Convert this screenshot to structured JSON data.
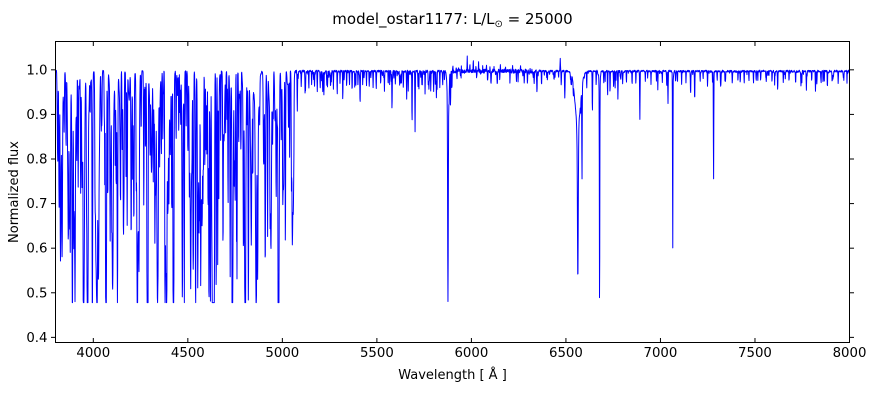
{
  "figure": {
    "background": "#ffffff",
    "title_parts": {
      "main": "model_ostar1177: L/L",
      "sub": "⊙",
      "suffix": " = 25000"
    }
  },
  "chart_data": {
    "type": "line",
    "title": "model_ostar1177: L/L⊙ = 25000",
    "xlabel": "Wavelength [ Å ]",
    "ylabel": "Normalized flux",
    "xlim": [
      3800,
      8000
    ],
    "ylim": [
      0.3885,
      1.0635
    ],
    "xticks": [
      4000,
      4500,
      5000,
      5500,
      6000,
      6500,
      7000,
      7500,
      8000
    ],
    "xticklabels": [
      "4000",
      "4500",
      "5000",
      "5500",
      "6000",
      "6500",
      "7000",
      "7500",
      "8000"
    ],
    "yticks": [
      0.4,
      0.5,
      0.6,
      0.7,
      0.8,
      0.9,
      1.0
    ],
    "yticklabels": [
      "0.4",
      "0.5",
      "0.6",
      "0.7",
      "0.8",
      "0.9",
      "1.0"
    ],
    "grid": false,
    "legend": null,
    "line_color": "#0000ff",
    "axis_color": "#000000",
    "continuum": 0.997,
    "flux_floor_blue": 0.478,
    "flux_floor_red": 0.443,
    "flux_ceiling": 1.035,
    "absorption_lines": [
      [
        3812,
        0.82,
        3
      ],
      [
        3820,
        0.74,
        3
      ],
      [
        3835,
        0.59,
        5
      ],
      [
        3846,
        0.9,
        2.5
      ],
      [
        3856,
        0.83,
        3
      ],
      [
        3868,
        0.79,
        3
      ],
      [
        3878,
        0.86,
        2.5
      ],
      [
        3889,
        0.612,
        5
      ],
      [
        3889,
        0.94,
        14
      ],
      [
        3906,
        0.89,
        2.5
      ],
      [
        3920,
        0.81,
        3
      ],
      [
        3933,
        0.72,
        3
      ],
      [
        3948,
        0.87,
        2.5
      ],
      [
        3964,
        0.79,
        3
      ],
      [
        3970,
        0.602,
        6
      ],
      [
        3970,
        0.93,
        16
      ],
      [
        3983,
        0.91,
        2.5
      ],
      [
        3995,
        0.76,
        3
      ],
      [
        4009,
        0.84,
        3
      ],
      [
        4026,
        0.62,
        4
      ],
      [
        4042,
        0.87,
        3
      ],
      [
        4058,
        0.91,
        2.5
      ],
      [
        4069,
        0.74,
        3
      ],
      [
        4076,
        0.79,
        3
      ],
      [
        4089,
        0.66,
        3
      ],
      [
        4102,
        0.592,
        7
      ],
      [
        4102,
        0.91,
        20
      ],
      [
        4116,
        0.8,
        3
      ],
      [
        4121,
        0.74,
        3
      ],
      [
        4128,
        0.76,
        3
      ],
      [
        4144,
        0.7,
        3.5
      ],
      [
        4153,
        0.82,
        3
      ],
      [
        4163,
        0.86,
        2.5
      ],
      [
        4173,
        0.76,
        3
      ],
      [
        4179,
        0.79,
        3
      ],
      [
        4200,
        0.73,
        3
      ],
      [
        4215,
        0.84,
        3
      ],
      [
        4227,
        0.8,
        3
      ],
      [
        4233,
        0.75,
        3
      ],
      [
        4242,
        0.84,
        3
      ],
      [
        4253,
        0.86,
        3
      ],
      [
        4267,
        0.71,
        3
      ],
      [
        4276,
        0.83,
        3
      ],
      [
        4284,
        0.85,
        3
      ],
      [
        4300,
        0.82,
        3
      ],
      [
        4317,
        0.75,
        3
      ],
      [
        4326,
        0.79,
        3
      ],
      [
        4340,
        0.579,
        7
      ],
      [
        4340,
        0.91,
        20
      ],
      [
        4351,
        0.82,
        3
      ],
      [
        4360,
        0.81,
        3
      ],
      [
        4368,
        0.84,
        3
      ],
      [
        4379,
        0.51,
        3
      ],
      [
        4388,
        0.64,
        3.5
      ],
      [
        4400,
        0.79,
        3
      ],
      [
        4415,
        0.71,
        3.5
      ],
      [
        4426,
        0.85,
        3
      ],
      [
        4438,
        0.84,
        3
      ],
      [
        4452,
        0.86,
        3
      ],
      [
        4462,
        0.88,
        2.5
      ],
      [
        4471,
        0.642,
        4.5
      ],
      [
        4471,
        0.93,
        10
      ],
      [
        4481,
        0.71,
        3
      ],
      [
        4491,
        0.87,
        2.5
      ],
      [
        4500,
        0.88,
        2.5
      ],
      [
        4508,
        0.84,
        3
      ],
      [
        4515,
        0.79,
        3
      ],
      [
        4522,
        0.85,
        3
      ],
      [
        4530,
        0.83,
        3
      ],
      [
        4541,
        0.585,
        3.5
      ],
      [
        4552,
        0.645,
        3.5
      ],
      [
        4560,
        0.78,
        3
      ],
      [
        4568,
        0.7,
        3
      ],
      [
        4576,
        0.755,
        3
      ],
      [
        4583,
        0.8,
        3
      ],
      [
        4590,
        0.775,
        3
      ],
      [
        4596,
        0.84,
        3
      ],
      [
        4601,
        0.81,
        3
      ],
      [
        4607,
        0.83,
        3
      ],
      [
        4613,
        0.85,
        2.5
      ],
      [
        4620,
        0.745,
        3
      ],
      [
        4626,
        0.82,
        3
      ],
      [
        4631,
        0.565,
        3
      ],
      [
        4640,
        0.53,
        3.5
      ],
      [
        4650,
        0.5,
        3.5
      ],
      [
        4658,
        0.565,
        3
      ],
      [
        4664,
        0.78,
        3
      ],
      [
        4674,
        0.83,
        2.5
      ],
      [
        4686,
        0.615,
        3.5
      ],
      [
        4700,
        0.86,
        2.5
      ],
      [
        4713,
        0.725,
        3
      ],
      [
        4724,
        0.6,
        3
      ],
      [
        4735,
        0.515,
        3
      ],
      [
        4746,
        0.78,
        3
      ],
      [
        4760,
        0.53,
        3
      ],
      [
        4769,
        0.85,
        2.5
      ],
      [
        4780,
        0.84,
        3
      ],
      [
        4793,
        0.785,
        3
      ],
      [
        4803,
        0.81,
        3
      ],
      [
        4814,
        0.88,
        2.5
      ],
      [
        4820,
        0.755,
        3
      ],
      [
        4840,
        0.895,
        2.5
      ],
      [
        4861,
        0.632,
        6
      ],
      [
        4861,
        0.91,
        26
      ],
      [
        4880,
        0.92,
        2.5
      ],
      [
        4900,
        0.93,
        2.5
      ],
      [
        4922,
        0.66,
        3
      ],
      [
        4935,
        0.93,
        2.5
      ],
      [
        4952,
        0.9,
        2.5
      ],
      [
        4973,
        0.94,
        2
      ],
      [
        4985,
        0.93,
        2
      ],
      [
        5002,
        0.91,
        2.5
      ],
      [
        5016,
        0.6,
        3
      ],
      [
        5032,
        0.92,
        2.5
      ],
      [
        5048,
        0.785,
        2.5
      ],
      [
        5061,
        0.93,
        2
      ],
      [
        5079,
        0.905,
        2.5
      ],
      [
        5100,
        0.965,
        2
      ],
      [
        5120,
        0.96,
        2
      ],
      [
        5140,
        0.955,
        2
      ],
      [
        5155,
        0.965,
        2
      ],
      [
        5170,
        0.958,
        2
      ],
      [
        5185,
        0.965,
        2
      ],
      [
        5200,
        0.962,
        2
      ],
      [
        5220,
        0.948,
        2
      ],
      [
        5235,
        0.965,
        2
      ],
      [
        5255,
        0.962,
        2
      ],
      [
        5270,
        0.955,
        2
      ],
      [
        5290,
        0.945,
        2
      ],
      [
        5305,
        0.968,
        2
      ],
      [
        5320,
        0.958,
        2
      ],
      [
        5340,
        0.962,
        2
      ],
      [
        5355,
        0.968,
        2
      ],
      [
        5369,
        0.95,
        2
      ],
      [
        5383,
        0.962,
        2
      ],
      [
        5400,
        0.965,
        2
      ],
      [
        5411,
        0.93,
        2.5
      ],
      [
        5425,
        0.968,
        2
      ],
      [
        5445,
        0.962,
        2
      ],
      [
        5460,
        0.965,
        2
      ],
      [
        5480,
        0.958,
        2
      ],
      [
        5497,
        0.968,
        2
      ],
      [
        5520,
        0.965,
        2
      ],
      [
        5540,
        0.962,
        2
      ],
      [
        5560,
        0.968,
        2
      ],
      [
        5580,
        0.91,
        2.5
      ],
      [
        5598,
        0.965,
        2
      ],
      [
        5620,
        0.968,
        2
      ],
      [
        5640,
        0.958,
        2
      ],
      [
        5658,
        0.965,
        2
      ],
      [
        5666,
        0.952,
        2
      ],
      [
        5686,
        0.88,
        2.5
      ],
      [
        5702,
        0.862,
        2.5
      ],
      [
        5722,
        0.955,
        2
      ],
      [
        5740,
        0.965,
        2
      ],
      [
        5755,
        0.945,
        2
      ],
      [
        5772,
        0.962,
        2
      ],
      [
        5785,
        0.952,
        2
      ],
      [
        5800,
        0.958,
        2
      ],
      [
        5815,
        0.938,
        2.5
      ],
      [
        5833,
        0.958,
        2
      ],
      [
        5848,
        0.962,
        2
      ],
      [
        5876,
        0.547,
        4
      ],
      [
        5876,
        0.93,
        11
      ],
      [
        5890,
        0.935,
        2
      ],
      [
        5897,
        0.952,
        2
      ],
      [
        6103,
        0.975,
        2
      ],
      [
        6150,
        0.972,
        2
      ],
      [
        6204,
        0.972,
        2
      ],
      [
        6247,
        0.968,
        2
      ],
      [
        6280,
        0.975,
        2
      ],
      [
        6347,
        0.958,
        2
      ],
      [
        6371,
        0.962,
        2
      ],
      [
        6402,
        0.975,
        2
      ],
      [
        6437,
        0.972,
        2
      ],
      [
        6494,
        0.935,
        3
      ],
      [
        6527,
        0.968,
        2
      ],
      [
        6563,
        0.649,
        5
      ],
      [
        6563,
        0.875,
        34
      ],
      [
        6585,
        0.79,
        2.5
      ],
      [
        6610,
        0.955,
        2
      ],
      [
        6640,
        0.91,
        2.5
      ],
      [
        6660,
        0.965,
        2
      ],
      [
        6678,
        0.5,
        2.5
      ],
      [
        6678,
        0.95,
        7
      ],
      [
        6700,
        0.968,
        2
      ],
      [
        6720,
        0.962,
        2
      ],
      [
        6733,
        0.965,
        2
      ],
      [
        6760,
        0.955,
        2
      ],
      [
        6775,
        0.935,
        2.5
      ],
      [
        6800,
        0.968,
        2
      ],
      [
        6820,
        0.972,
        2
      ],
      [
        6850,
        0.965,
        2
      ],
      [
        6870,
        0.968,
        2
      ],
      [
        6891,
        0.885,
        2.5
      ],
      [
        6920,
        0.972,
        2
      ],
      [
        6950,
        0.968,
        2
      ],
      [
        6986,
        0.955,
        2
      ],
      [
        7010,
        0.972,
        2
      ],
      [
        7040,
        0.968,
        2
      ],
      [
        7065,
        0.594,
        2.5
      ],
      [
        7090,
        0.972,
        2
      ],
      [
        7112,
        0.968,
        2
      ],
      [
        7135,
        0.972,
        2
      ],
      [
        7160,
        0.968,
        2
      ],
      [
        7181,
        0.93,
        2.5
      ],
      [
        7210,
        0.972,
        2
      ],
      [
        7249,
        0.968,
        2
      ],
      [
        7281,
        0.75,
        2.5
      ],
      [
        7300,
        0.975,
        2
      ],
      [
        7320,
        0.97,
        2
      ],
      [
        7344,
        0.97,
        2
      ],
      [
        7380,
        0.975,
        2
      ],
      [
        7410,
        0.973,
        2
      ],
      [
        7443,
        0.97,
        2
      ],
      [
        7468,
        0.975,
        2
      ],
      [
        7492,
        0.97,
        2
      ],
      [
        7515,
        0.975,
        2
      ],
      [
        7530,
        0.973,
        2
      ],
      [
        7560,
        0.975,
        2
      ],
      [
        7590,
        0.972,
        2
      ],
      [
        7620,
        0.955,
        2.5
      ],
      [
        7650,
        0.975,
        2
      ],
      [
        7680,
        0.973,
        2
      ],
      [
        7715,
        0.968,
        2
      ],
      [
        7748,
        0.972,
        2
      ],
      [
        7772,
        0.955,
        2.5
      ],
      [
        7800,
        0.972,
        2
      ],
      [
        7820,
        0.95,
        2.5
      ],
      [
        7850,
        0.972,
        2
      ],
      [
        7883,
        0.958,
        2
      ],
      [
        7912,
        0.975,
        2
      ],
      [
        7940,
        0.973,
        2
      ],
      [
        7970,
        0.975,
        2
      ]
    ],
    "emission_lines": [
      [
        5902,
        1.012,
        2
      ],
      [
        5920,
        1.006,
        2
      ],
      [
        5932,
        1.008,
        2
      ],
      [
        5947,
        1.018,
        2
      ],
      [
        5961,
        1.008,
        2
      ],
      [
        5978,
        1.032,
        2
      ],
      [
        5992,
        1.014,
        2
      ],
      [
        6010,
        1.022,
        2
      ],
      [
        6024,
        1.01,
        2
      ],
      [
        6038,
        1.016,
        2
      ],
      [
        6060,
        1.008,
        2
      ],
      [
        6080,
        1.012,
        2
      ],
      [
        6098,
        1.008,
        2
      ],
      [
        6120,
        1.006,
        2
      ],
      [
        6153,
        1.01,
        2
      ],
      [
        6180,
        1.006,
        2
      ],
      [
        6218,
        1.009,
        2
      ],
      [
        6260,
        1.006,
        2
      ],
      [
        6310,
        1.007,
        2
      ],
      [
        6360,
        1.005,
        2
      ],
      [
        6470,
        1.026,
        2.5
      ]
    ],
    "forest": {
      "seed": 7,
      "regions": [
        {
          "from": 3802,
          "to": 5060,
          "count": 260,
          "depth_base": 0.02,
          "depth_scale": 0.38,
          "depth_pow": 3,
          "fwhm_min": 1.5,
          "fwhm_max": 7
        },
        {
          "from": 5060,
          "to": 5890,
          "count": 80,
          "depth_base": 0.004,
          "depth_scale": 0.04,
          "depth_pow": 2,
          "fwhm_min": 1.2,
          "fwhm_max": 3
        },
        {
          "from": 5890,
          "to": 6460,
          "count": 40,
          "depth_base": 0.003,
          "depth_scale": 0.022,
          "depth_pow": 2,
          "fwhm_min": 1.2,
          "fwhm_max": 3
        },
        {
          "from": 6460,
          "to": 7995,
          "count": 90,
          "depth_base": 0.003,
          "depth_scale": 0.03,
          "depth_pow": 2,
          "fwhm_min": 1.2,
          "fwhm_max": 3
        }
      ]
    },
    "noise": {
      "base": 0.0022,
      "fuzzy_region": [
        5890,
        6350
      ],
      "fuzzy": 0.0045
    }
  }
}
